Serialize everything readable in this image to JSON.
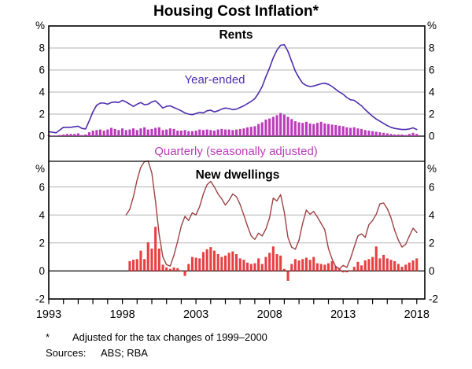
{
  "page": {
    "title": "Housing Cost Inflation*",
    "footnote_marker": "*",
    "footnote_text": "Adjusted for the tax changes of 1999–2000",
    "sources_label": "Sources:",
    "sources_text": "ABS; RBA"
  },
  "axis": {
    "x_labels": [
      1993,
      1998,
      2003,
      2008,
      2013,
      2018
    ],
    "x_tick_from": 1993,
    "x_tick_to": 2018,
    "x_tick_interval": 1
  },
  "colors": {
    "rents_line": "#4f2daf",
    "rents_bars": "#bb3cba",
    "dwellings_line": "#9e4143",
    "dwellings_bars": "#e74043",
    "grid": "#b3b3b3",
    "axis": "#000000"
  },
  "chart_data": [
    {
      "type": "line+bar",
      "panel_title": "Rents",
      "unit": "%",
      "ylim": [
        -2.29,
        10.0
      ],
      "yticks": [
        0,
        2,
        4,
        6,
        8
      ],
      "grid": true,
      "x_step": 0.25,
      "series": [
        {
          "name": "Year-ended",
          "type": "line",
          "color": "#4f2daf",
          "x_start": 1993.0,
          "values": [
            0.4,
            0.35,
            0.3,
            0.55,
            0.8,
            0.8,
            0.8,
            0.85,
            0.9,
            0.7,
            0.65,
            1.4,
            2.2,
            2.8,
            3.0,
            3.0,
            2.9,
            3.05,
            3.1,
            3.05,
            3.25,
            3.1,
            2.9,
            2.7,
            2.9,
            3.05,
            2.85,
            2.9,
            3.1,
            3.2,
            2.9,
            2.55,
            2.7,
            2.75,
            2.6,
            2.45,
            2.3,
            2.1,
            2.0,
            1.95,
            2.05,
            2.15,
            2.1,
            2.3,
            2.35,
            2.2,
            2.3,
            2.45,
            2.55,
            2.5,
            2.4,
            2.45,
            2.6,
            2.75,
            2.95,
            3.15,
            3.4,
            3.9,
            4.5,
            5.4,
            6.2,
            7.1,
            7.8,
            8.25,
            8.3,
            7.7,
            6.8,
            5.9,
            5.3,
            4.8,
            4.6,
            4.5,
            4.55,
            4.65,
            4.75,
            4.8,
            4.7,
            4.5,
            4.25,
            4.0,
            3.8,
            3.5,
            3.3,
            3.25,
            3.0,
            2.75,
            2.4,
            2.1,
            1.8,
            1.55,
            1.35,
            1.15,
            0.95,
            0.8,
            0.7,
            0.65,
            0.6,
            0.6,
            0.65,
            0.75,
            0.6
          ]
        },
        {
          "name": "Quarterly (seasonally adjusted)",
          "type": "bar",
          "color": "#bb3cba",
          "x_start": 1993.0,
          "values": [
            0.1,
            0.05,
            0.05,
            0.1,
            0.15,
            0.2,
            0.2,
            0.2,
            0.25,
            0.1,
            0.15,
            0.35,
            0.5,
            0.55,
            0.6,
            0.5,
            0.6,
            0.75,
            0.65,
            0.55,
            0.7,
            0.55,
            0.6,
            0.7,
            0.55,
            0.7,
            0.8,
            0.6,
            0.65,
            0.75,
            0.8,
            0.55,
            0.6,
            0.7,
            0.65,
            0.5,
            0.5,
            0.55,
            0.45,
            0.45,
            0.5,
            0.6,
            0.55,
            0.6,
            0.55,
            0.5,
            0.6,
            0.65,
            0.6,
            0.6,
            0.55,
            0.6,
            0.65,
            0.7,
            0.8,
            0.85,
            0.9,
            1.1,
            1.25,
            1.5,
            1.6,
            1.75,
            1.9,
            2.1,
            1.95,
            1.75,
            1.55,
            1.35,
            1.25,
            1.2,
            1.3,
            1.15,
            1.1,
            1.2,
            1.3,
            1.15,
            1.1,
            1.05,
            1.0,
            0.95,
            0.9,
            0.8,
            0.75,
            0.8,
            0.7,
            0.65,
            0.55,
            0.5,
            0.45,
            0.4,
            0.35,
            0.3,
            0.25,
            0.2,
            0.15,
            0.15,
            0.15,
            0.1,
            0.2,
            0.3,
            0.2
          ]
        }
      ]
    },
    {
      "type": "line+bar",
      "panel_title": "New dwellings",
      "unit": "%",
      "ylim": [
        -2.0,
        7.83
      ],
      "yticks": [
        -2,
        0,
        2,
        4,
        6
      ],
      "grid": true,
      "x_step": 0.25,
      "series": [
        {
          "name": "Year-ended",
          "type": "line",
          "color": "#9e4143",
          "x_start": 1998.25,
          "values": [
            4.0,
            4.4,
            5.3,
            6.5,
            7.4,
            7.8,
            7.85,
            7.0,
            5.0,
            2.6,
            1.0,
            0.45,
            0.35,
            1.1,
            2.1,
            3.2,
            3.9,
            3.6,
            4.15,
            4.0,
            4.6,
            5.5,
            6.15,
            6.4,
            6.0,
            5.5,
            5.15,
            4.7,
            5.05,
            5.5,
            5.3,
            4.75,
            4.0,
            3.2,
            2.5,
            2.25,
            2.7,
            2.5,
            3.0,
            3.8,
            5.2,
            5.0,
            5.45,
            4.2,
            2.4,
            1.7,
            1.55,
            2.2,
            3.4,
            4.35,
            4.05,
            4.25,
            3.85,
            3.4,
            2.95,
            1.6,
            0.85,
            0.3,
            0.15,
            0.4,
            0.25,
            0.9,
            1.7,
            2.5,
            2.65,
            2.4,
            3.3,
            3.6,
            4.05,
            4.8,
            4.85,
            4.45,
            3.8,
            2.9,
            2.2,
            1.7,
            1.9,
            2.5,
            3.05,
            2.75
          ]
        },
        {
          "name": "Quarterly",
          "type": "bar",
          "color": "#e74043",
          "x_start": 1998.5,
          "values": [
            0.7,
            0.8,
            0.85,
            1.45,
            0.85,
            2.05,
            1.6,
            3.15,
            1.6,
            0.45,
            0.25,
            0.15,
            0.25,
            0.2,
            0.05,
            -0.35,
            0.5,
            1.0,
            0.95,
            0.9,
            1.35,
            1.55,
            1.7,
            1.45,
            1.2,
            1.0,
            1.1,
            1.3,
            1.4,
            1.2,
            0.9,
            0.8,
            0.6,
            0.5,
            0.55,
            0.9,
            0.5,
            1.0,
            1.3,
            1.75,
            1.2,
            1.1,
            0.15,
            -0.7,
            0.5,
            0.85,
            0.75,
            0.85,
            0.95,
            0.8,
            1.0,
            0.55,
            0.5,
            0.45,
            0.55,
            0.7,
            0.35,
            0.15,
            -0.1,
            -0.1,
            0.05,
            0.3,
            0.65,
            0.4,
            0.75,
            0.85,
            1.0,
            1.75,
            0.9,
            1.15,
            0.9,
            0.8,
            0.7,
            0.5,
            0.3,
            0.45,
            0.6,
            0.75,
            0.9
          ]
        }
      ]
    }
  ]
}
